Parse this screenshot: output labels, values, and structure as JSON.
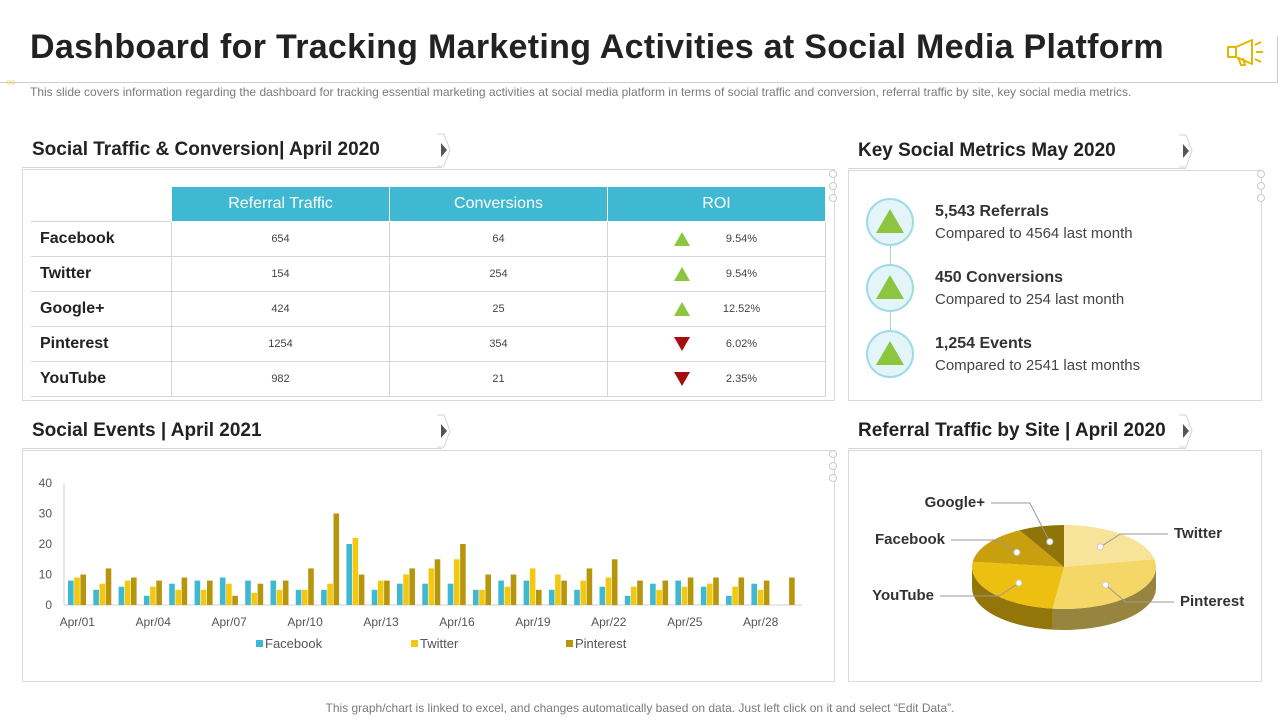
{
  "page": {
    "title": "Dashboard for Tracking Marketing Activities at Social Media Platform",
    "subtitle": "This slide covers information regarding the dashboard for tracking essential marketing activities at social media platform in terms of social traffic and conversion, referral traffic by site, key social media metrics.",
    "footer": "This graph/chart is linked to excel, and changes automatically based on data. Just left click on it and select “Edit Data”.",
    "icon": "megaphone-icon"
  },
  "traffic": {
    "header": "Social Traffic & Conversion| April 2020",
    "columns": [
      "Referral Traffic",
      "Conversions",
      "ROI"
    ],
    "rows": [
      {
        "name": "Facebook",
        "referral": "654",
        "conversions": "64",
        "roi": "9.54%",
        "trend": "up"
      },
      {
        "name": "Twitter",
        "referral": "154",
        "conversions": "254",
        "roi": "9.54%",
        "trend": "up"
      },
      {
        "name": "Google+",
        "referral": "424",
        "conversions": "25",
        "roi": "12.52%",
        "trend": "up"
      },
      {
        "name": "Pinterest",
        "referral": "1254",
        "conversions": "354",
        "roi": "6.02%",
        "trend": "down"
      },
      {
        "name": "YouTube",
        "referral": "982",
        "conversions": "21",
        "roi": "2.35%",
        "trend": "down"
      }
    ]
  },
  "metrics": {
    "header": "Key Social Metrics May 2020",
    "items": [
      {
        "headline": "5,543 Referrals",
        "detail": "Compared to 4564 last month"
      },
      {
        "headline": "450 Conversions",
        "detail": "Compared to 254 last month"
      },
      {
        "headline": "1,254 Events",
        "detail": "Compared to 2541 last months"
      }
    ]
  },
  "events": {
    "header": "Social Events | April 2021"
  },
  "referral_site": {
    "header": "Referral Traffic by Site | April  2020"
  },
  "colors": {
    "accent": "#3fb8d2",
    "facebook": "#3fb8d2",
    "twitter": "#f2c811",
    "pinterest": "#b8960c",
    "up": "#8cc63f",
    "down": "#a50f0f"
  },
  "chart_data": [
    {
      "type": "bar",
      "title": "Social Events | April 2021",
      "categories": [
        "Apr/01",
        "Apr/02",
        "Apr/03",
        "Apr/04",
        "Apr/05",
        "Apr/06",
        "Apr/07",
        "Apr/08",
        "Apr/09",
        "Apr/10",
        "Apr/11",
        "Apr/12",
        "Apr/13",
        "Apr/14",
        "Apr/15",
        "Apr/16",
        "Apr/17",
        "Apr/18",
        "Apr/19",
        "Apr/20",
        "Apr/21",
        "Apr/22",
        "Apr/23",
        "Apr/24",
        "Apr/25",
        "Apr/26",
        "Apr/27",
        "Apr/28",
        "Apr/29"
      ],
      "tick_labels": [
        "Apr/01",
        "Apr/04",
        "Apr/07",
        "Apr/10",
        "Apr/13",
        "Apr/16",
        "Apr/19",
        "Apr/22",
        "Apr/25",
        "Apr/28"
      ],
      "series": [
        {
          "name": "Facebook",
          "values": [
            8,
            5,
            6,
            3,
            7,
            8,
            9,
            8,
            8,
            5,
            5,
            20,
            5,
            7,
            7,
            7,
            5,
            8,
            8,
            5,
            5,
            6,
            3,
            7,
            8,
            6,
            3,
            7,
            0
          ]
        },
        {
          "name": "Twitter",
          "values": [
            9,
            7,
            8,
            6,
            5,
            5,
            7,
            4,
            5,
            5,
            7,
            22,
            8,
            10,
            12,
            15,
            5,
            6,
            12,
            10,
            8,
            9,
            6,
            5,
            6,
            7,
            6,
            5,
            0
          ]
        },
        {
          "name": "Pinterest",
          "values": [
            10,
            12,
            9,
            8,
            9,
            8,
            3,
            7,
            8,
            12,
            30,
            10,
            8,
            12,
            15,
            20,
            10,
            10,
            5,
            8,
            12,
            15,
            8,
            8,
            9,
            9,
            9,
            8,
            9
          ]
        }
      ],
      "ylim": [
        0,
        40
      ],
      "yticks": [
        0,
        10,
        20,
        30,
        40
      ],
      "xlabel": "",
      "ylabel": "",
      "legend": "bottom"
    },
    {
      "type": "pie",
      "title": "Referral Traffic by Site | April  2020",
      "labels": [
        "Twitter",
        "Pinterest",
        "YouTube",
        "Facebook",
        "Google+"
      ],
      "values": [
        22,
        30,
        25,
        15,
        8
      ],
      "colors": [
        "#f7e49a",
        "#f4d766",
        "#ecbf10",
        "#c8a00f",
        "#8f7408"
      ]
    }
  ]
}
